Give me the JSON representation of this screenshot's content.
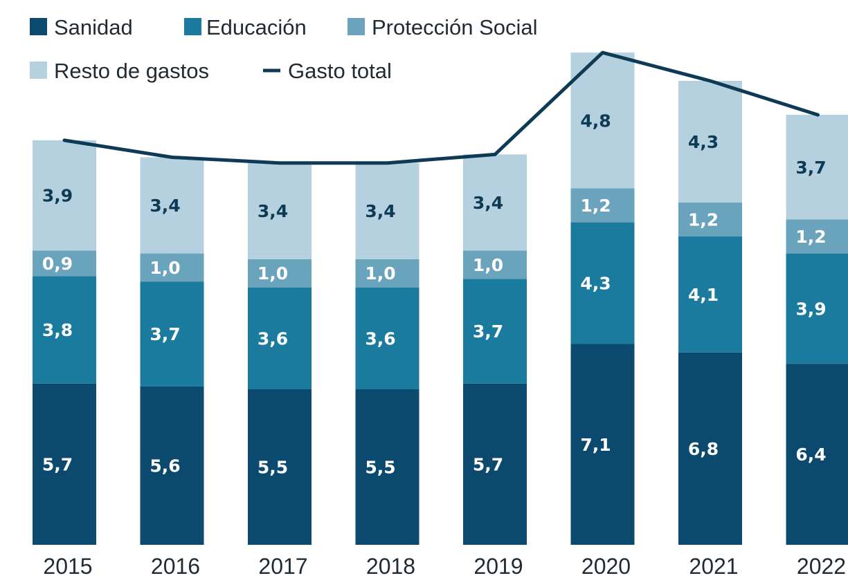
{
  "chart_data": {
    "type": "bar",
    "stacked": true,
    "categories": [
      "2015",
      "2016",
      "2017",
      "2018",
      "2019",
      "2020",
      "2021",
      "2022"
    ],
    "series": [
      {
        "name": "Sanidad",
        "color": "#0b4a6e",
        "values": [
          5.7,
          5.6,
          5.5,
          5.5,
          5.7,
          7.1,
          6.8,
          6.4
        ]
      },
      {
        "name": "Educación",
        "color": "#1a7b9e",
        "values": [
          3.8,
          3.7,
          3.6,
          3.6,
          3.7,
          4.3,
          4.1,
          3.9
        ]
      },
      {
        "name": "Protección Social",
        "color": "#6aa3bc",
        "values": [
          0.9,
          1.0,
          1.0,
          1.0,
          1.0,
          1.2,
          1.2,
          1.2
        ]
      },
      {
        "name": "Resto de gastos",
        "color": "#b5d0de",
        "values": [
          3.9,
          3.4,
          3.4,
          3.4,
          3.4,
          4.8,
          4.3,
          3.7
        ]
      }
    ],
    "line": {
      "name": "Gasto total",
      "color": "#0d3b56",
      "values": [
        14.3,
        13.7,
        13.5,
        13.5,
        13.8,
        17.4,
        16.4,
        15.2
      ]
    },
    "value_labels": [
      [
        "5,7",
        "5,6",
        "5,5",
        "5,5",
        "5,7",
        "7,1",
        "6,8",
        "6,4"
      ],
      [
        "3,8",
        "3,7",
        "3,6",
        "3,6",
        "3,7",
        "4,3",
        "4,1",
        "3,9"
      ],
      [
        "0,9",
        "1,0",
        "1,0",
        "1,0",
        "1,0",
        "1,2",
        "1,2",
        "1,2"
      ],
      [
        "3,9",
        "3,4",
        "3,4",
        "3,4",
        "3,4",
        "4,8",
        "4,3",
        "3,7"
      ]
    ],
    "label_colors": [
      "#ffffff",
      "#ffffff",
      "#ffffff",
      "#0d3b56"
    ],
    "ylim": [
      0,
      17.5
    ],
    "grid": false,
    "legend_position": "top-left",
    "title": "",
    "xlabel": "",
    "ylabel": ""
  }
}
